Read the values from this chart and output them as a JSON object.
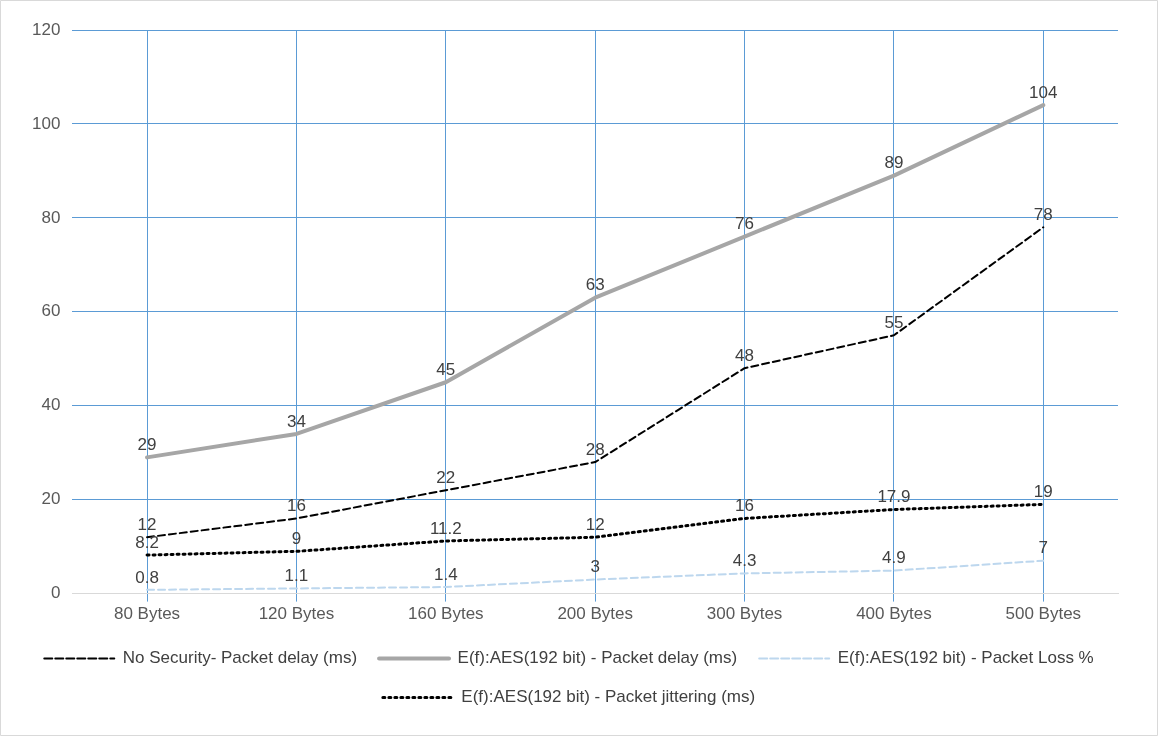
{
  "chart_data": {
    "type": "line",
    "categories": [
      "80 Bytes",
      "120 Bytes",
      "160 Bytes",
      "200 Bytes",
      "300 Bytes",
      "400 Bytes",
      "500 Bytes"
    ],
    "series": [
      {
        "name": "No Security- Packet delay (ms)",
        "color": "#000000",
        "line_style": "dashed",
        "values": [
          12,
          16,
          22,
          28,
          48,
          55,
          78
        ]
      },
      {
        "name": "E(f):AES(192 bit) - Packet delay (ms)",
        "color": "#a6a6a6",
        "line_style": "solid",
        "values": [
          29,
          34,
          45,
          63,
          76,
          89,
          104
        ]
      },
      {
        "name": "E(f):AES(192 bit) - Packet Loss %",
        "color": "#bdd7ee",
        "line_style": "dashed",
        "values": [
          0.8,
          1.1,
          1.4,
          3,
          4.3,
          4.9,
          7
        ]
      },
      {
        "name": "E(f):AES(192 bit) - Packet jittering (ms)",
        "color": "#000000",
        "line_style": "dotted",
        "values": [
          8.2,
          9,
          11.2,
          12,
          16,
          17.9,
          19
        ]
      }
    ],
    "ylim": [
      0,
      120
    ],
    "yticks": [
      0,
      20,
      40,
      60,
      80,
      100,
      120
    ],
    "grid": true,
    "legend": "bottom",
    "marker": "none",
    "data_labels": true
  }
}
